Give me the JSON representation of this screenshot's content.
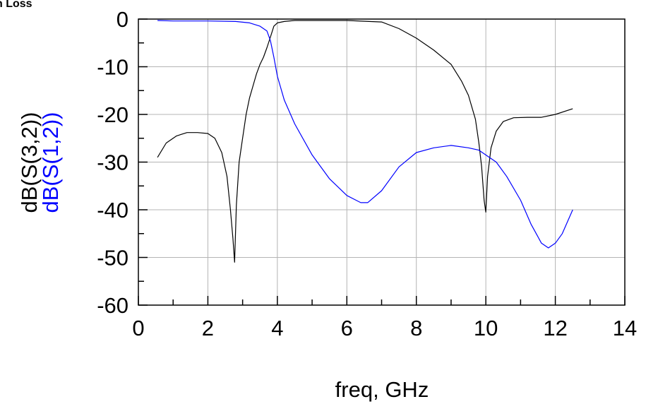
{
  "chart_data": {
    "type": "line",
    "title": "n Loss",
    "xlabel": "freq, GHz",
    "xlim": [
      0,
      14
    ],
    "ylim": [
      -60,
      0
    ],
    "xticks": [
      0,
      2,
      4,
      6,
      8,
      10,
      12,
      14
    ],
    "yticks": [
      0,
      -10,
      -20,
      -30,
      -40,
      -50,
      -60
    ],
    "grid": true,
    "series": [
      {
        "name": "dB(S(3,2))",
        "color": "#000000",
        "x": [
          0.55,
          0.8,
          1.1,
          1.4,
          1.7,
          2.0,
          2.2,
          2.4,
          2.55,
          2.65,
          2.72,
          2.77,
          2.82,
          2.9,
          3.0,
          3.1,
          3.2,
          3.3,
          3.4,
          3.5,
          3.6,
          3.7,
          3.8,
          3.9,
          4.0,
          4.2,
          4.5,
          5.0,
          6.0,
          7.0,
          7.5,
          8.0,
          8.5,
          9.0,
          9.3,
          9.5,
          9.7,
          9.8,
          9.88,
          9.95,
          10.0,
          10.05,
          10.15,
          10.3,
          10.5,
          10.8,
          11.2,
          11.6,
          12.0,
          12.5
        ],
        "y": [
          -29,
          -26,
          -24.5,
          -23.8,
          -23.8,
          -24,
          -25,
          -28,
          -33,
          -40,
          -46,
          -51,
          -39,
          -30,
          -25,
          -20,
          -16.5,
          -14,
          -11.5,
          -9.5,
          -8,
          -6,
          -3.8,
          -1.5,
          -0.8,
          -0.5,
          -0.3,
          -0.3,
          -0.3,
          -0.6,
          -2,
          -4,
          -6.5,
          -9.5,
          -13,
          -16,
          -21,
          -26,
          -31,
          -38,
          -40.5,
          -33,
          -27,
          -23.5,
          -21.5,
          -20.7,
          -20.6,
          -20.6,
          -20,
          -18.8
        ]
      },
      {
        "name": "dB(S(1,2))",
        "color": "#0000ff",
        "x": [
          0.55,
          1.0,
          2.0,
          2.8,
          3.2,
          3.5,
          3.7,
          3.8,
          3.9,
          4.0,
          4.2,
          4.5,
          5.0,
          5.5,
          6.0,
          6.4,
          6.6,
          7.0,
          7.5,
          8.0,
          8.5,
          9.0,
          9.5,
          9.8,
          10.0,
          10.3,
          10.6,
          11.0,
          11.3,
          11.6,
          11.8,
          12.0,
          12.2,
          12.5
        ],
        "y": [
          -0.3,
          -0.4,
          -0.4,
          -0.5,
          -0.8,
          -1.5,
          -2.5,
          -4.5,
          -8,
          -12,
          -17,
          -22,
          -28.5,
          -33.5,
          -37,
          -38.5,
          -38.5,
          -36,
          -31,
          -28,
          -27,
          -26.5,
          -27,
          -27.5,
          -28.5,
          -30,
          -33,
          -38,
          -43,
          -47,
          -48,
          -47,
          -45,
          -40
        ]
      }
    ]
  }
}
